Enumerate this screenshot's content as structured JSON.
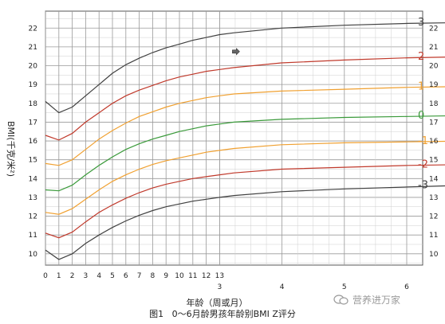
{
  "chart_data": {
    "type": "line",
    "title": "",
    "xlabel": "年龄（周或月）",
    "ylabel": "BMI(千克/米²)",
    "ylim": [
      9.4,
      22.9
    ],
    "y_ticks": [
      10,
      11,
      12,
      13,
      14,
      15,
      16,
      17,
      18,
      19,
      20,
      21,
      22
    ],
    "y_tick_labels": [
      "10",
      "11",
      "12",
      "13",
      "14",
      "15",
      "16",
      "17",
      "18",
      "19",
      "20",
      "21",
      "22"
    ],
    "x_ticks_weeks": [
      "0",
      "1",
      "2",
      "3",
      "4",
      "5",
      "6",
      "7",
      "8",
      "9",
      "10",
      "11",
      "12",
      "13"
    ],
    "x_ticks_months": [
      "3",
      "4",
      "5",
      "6"
    ],
    "grid": true,
    "arrow_marker": {
      "x": 14,
      "y": 20.75
    },
    "series": [
      {
        "name": "3",
        "color": "#404040",
        "points": [
          [
            0,
            18.1
          ],
          [
            1,
            17.5
          ],
          [
            2,
            17.8
          ],
          [
            3,
            18.4
          ],
          [
            4,
            19.0
          ],
          [
            5,
            19.6
          ],
          [
            6,
            20.05
          ],
          [
            7,
            20.4
          ],
          [
            8,
            20.7
          ],
          [
            9,
            20.95
          ],
          [
            10,
            21.15
          ],
          [
            11,
            21.35
          ],
          [
            12,
            21.5
          ],
          [
            13,
            21.65
          ],
          [
            14,
            21.75
          ],
          [
            17.3,
            22.0
          ],
          [
            21.7,
            22.15
          ],
          [
            26.1,
            22.25
          ],
          [
            30.4,
            22.3
          ]
        ]
      },
      {
        "name": "2",
        "color": "#c0392b",
        "points": [
          [
            0,
            16.3
          ],
          [
            1,
            16.05
          ],
          [
            2,
            16.4
          ],
          [
            3,
            17.0
          ],
          [
            4,
            17.5
          ],
          [
            5,
            18.0
          ],
          [
            6,
            18.4
          ],
          [
            7,
            18.7
          ],
          [
            8,
            18.95
          ],
          [
            9,
            19.2
          ],
          [
            10,
            19.4
          ],
          [
            11,
            19.55
          ],
          [
            12,
            19.7
          ],
          [
            13,
            19.8
          ],
          [
            14,
            19.9
          ],
          [
            17.3,
            20.15
          ],
          [
            21.7,
            20.3
          ],
          [
            26.1,
            20.42
          ],
          [
            30.4,
            20.48
          ]
        ]
      },
      {
        "name": "1",
        "color": "#f0a030",
        "points": [
          [
            0,
            14.8
          ],
          [
            1,
            14.7
          ],
          [
            2,
            15.0
          ],
          [
            3,
            15.55
          ],
          [
            4,
            16.1
          ],
          [
            5,
            16.55
          ],
          [
            6,
            16.95
          ],
          [
            7,
            17.3
          ],
          [
            8,
            17.55
          ],
          [
            9,
            17.8
          ],
          [
            10,
            18.0
          ],
          [
            11,
            18.15
          ],
          [
            12,
            18.3
          ],
          [
            13,
            18.4
          ],
          [
            14,
            18.5
          ],
          [
            17.3,
            18.65
          ],
          [
            21.7,
            18.75
          ],
          [
            26.1,
            18.85
          ],
          [
            30.4,
            18.9
          ]
        ]
      },
      {
        "name": "0",
        "color": "#3a9a3a",
        "points": [
          [
            0,
            13.4
          ],
          [
            1,
            13.35
          ],
          [
            2,
            13.65
          ],
          [
            3,
            14.2
          ],
          [
            4,
            14.7
          ],
          [
            5,
            15.15
          ],
          [
            6,
            15.55
          ],
          [
            7,
            15.85
          ],
          [
            8,
            16.1
          ],
          [
            9,
            16.3
          ],
          [
            10,
            16.5
          ],
          [
            11,
            16.65
          ],
          [
            12,
            16.8
          ],
          [
            13,
            16.9
          ],
          [
            14,
            17.0
          ],
          [
            17.3,
            17.15
          ],
          [
            21.7,
            17.25
          ],
          [
            26.1,
            17.3
          ],
          [
            30.4,
            17.35
          ]
        ]
      },
      {
        "name": "-1",
        "color": "#f0a030",
        "points": [
          [
            0,
            12.2
          ],
          [
            1,
            12.1
          ],
          [
            2,
            12.4
          ],
          [
            3,
            12.9
          ],
          [
            4,
            13.4
          ],
          [
            5,
            13.85
          ],
          [
            6,
            14.2
          ],
          [
            7,
            14.5
          ],
          [
            8,
            14.75
          ],
          [
            9,
            14.95
          ],
          [
            10,
            15.1
          ],
          [
            11,
            15.25
          ],
          [
            12,
            15.4
          ],
          [
            13,
            15.5
          ],
          [
            14,
            15.6
          ],
          [
            17.3,
            15.8
          ],
          [
            21.7,
            15.9
          ],
          [
            26.1,
            15.95
          ],
          [
            30.4,
            16.0
          ]
        ]
      },
      {
        "name": "-2",
        "color": "#c0392b",
        "points": [
          [
            0,
            11.1
          ],
          [
            1,
            10.85
          ],
          [
            2,
            11.15
          ],
          [
            3,
            11.7
          ],
          [
            4,
            12.2
          ],
          [
            5,
            12.6
          ],
          [
            6,
            12.95
          ],
          [
            7,
            13.25
          ],
          [
            8,
            13.5
          ],
          [
            9,
            13.7
          ],
          [
            10,
            13.85
          ],
          [
            11,
            14.0
          ],
          [
            12,
            14.1
          ],
          [
            13,
            14.2
          ],
          [
            14,
            14.3
          ],
          [
            17.3,
            14.5
          ],
          [
            21.7,
            14.6
          ],
          [
            26.1,
            14.7
          ],
          [
            30.4,
            14.75
          ]
        ]
      },
      {
        "name": "-3",
        "color": "#404040",
        "points": [
          [
            0,
            10.2
          ],
          [
            1,
            9.7
          ],
          [
            2,
            10.0
          ],
          [
            3,
            10.55
          ],
          [
            4,
            11.0
          ],
          [
            5,
            11.4
          ],
          [
            6,
            11.75
          ],
          [
            7,
            12.05
          ],
          [
            8,
            12.3
          ],
          [
            9,
            12.5
          ],
          [
            10,
            12.65
          ],
          [
            11,
            12.8
          ],
          [
            12,
            12.9
          ],
          [
            13,
            13.0
          ],
          [
            14,
            13.1
          ],
          [
            17.3,
            13.3
          ],
          [
            21.7,
            13.45
          ],
          [
            26.1,
            13.55
          ],
          [
            30.4,
            13.65
          ]
        ]
      }
    ]
  },
  "caption": {
    "figure_label": "图1",
    "text": "0～6月龄男孩年龄别BMI Z评分"
  },
  "watermark": {
    "text": "营养进万家",
    "icon": "wechat-icon"
  }
}
